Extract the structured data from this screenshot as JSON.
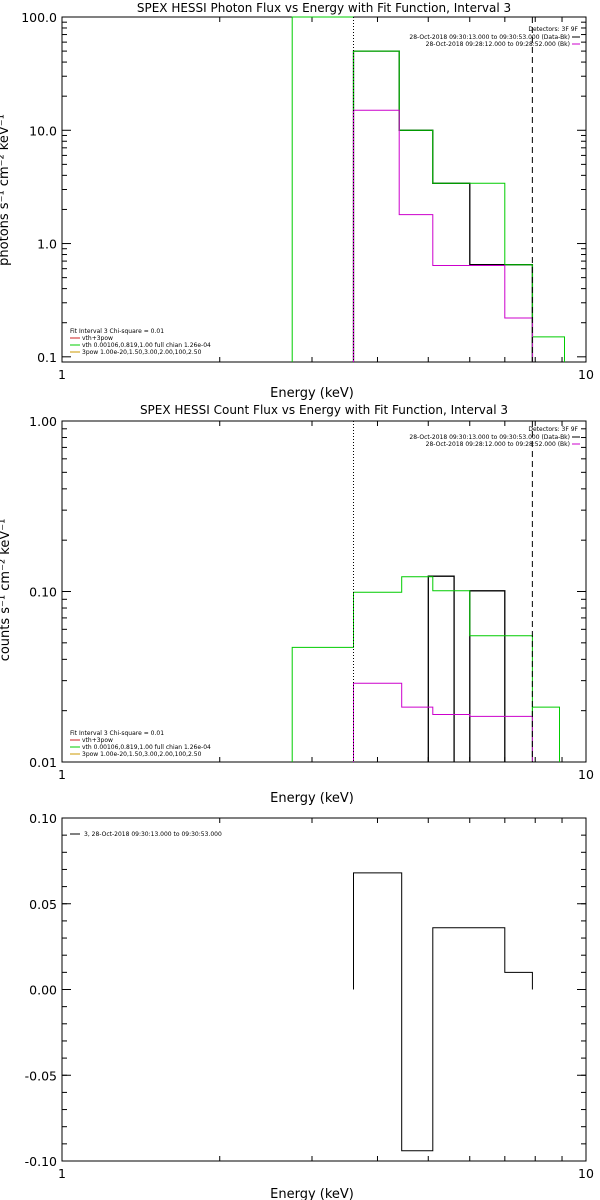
{
  "colors": {
    "total": "#000000",
    "thermal": "#00cc00",
    "pow": "#cc00cc",
    "eq_vth_spow": "#cc2222",
    "eq_vth": "#00cc00",
    "eq_spow": "#cc9900"
  },
  "chart_data": [
    {
      "type": "line",
      "title": "SPEX HESSI Photon Flux vs Energy with Fit Function, Interval 3",
      "xlabel": "Energy (keV)",
      "ylabel": "photons s⁻¹ cm⁻² keV⁻¹",
      "xscale": "log",
      "yscale": "log",
      "xlim": [
        1,
        10
      ],
      "ylim": [
        0.09,
        100
      ],
      "xticks": [
        {
          "v": 1,
          "label": "1"
        },
        {
          "v": 10,
          "label": "10"
        }
      ],
      "yticks": [
        {
          "v": 0.1,
          "label": "0.1"
        },
        {
          "v": 1,
          "label": "1.0"
        },
        {
          "v": 10,
          "label": "10.0"
        },
        {
          "v": 100,
          "label": "100.0"
        }
      ],
      "vlines": [
        {
          "x": 3.6,
          "style": "dotted"
        },
        {
          "x": 7.9,
          "style": "dashed"
        }
      ],
      "legend_top": [
        "Detectors: 3F 9F",
        "28-Oct-2018 09:30:13.000 to 09:30:53.000 (Data-Bk)",
        "28-Oct-2018 09:28:12.000 to 09:28:52.000 (Bk)"
      ],
      "legend_bottom": [
        {
          "text": "Fit Interval 3   Chi-square = 0.01",
          "color": ""
        },
        {
          "text": "vth+3pow",
          "color": "#cc2222"
        },
        {
          "text": "vth 0.00106,0.819,1.00  full chian 1.26e-04",
          "color": "#00cc00"
        },
        {
          "text": "3pow 1.00e-20,1.50,3.00,2.00,100,2.50",
          "color": "#cc9900"
        }
      ],
      "series": [
        {
          "color": "#000000",
          "width": 1.3,
          "segments": [
            {
              "edges": [
                3.6,
                4.4,
                5.1,
                6.0,
                7.9
              ],
              "values": [
                50,
                10,
                3.4,
                0.65
              ]
            }
          ]
        },
        {
          "color": "#00cc00",
          "width": 1,
          "segments": [
            {
              "edges": [
                2.75,
                3.6
              ],
              "values": [
                110,
                110
              ]
            },
            {
              "edges": [
                3.6,
                4.4,
                5.1,
                6.0,
                7.0,
                7.9
              ],
              "values": [
                50,
                10,
                3.4,
                3.4,
                0.65
              ]
            },
            {
              "edges": [
                7.9,
                9.1
              ],
              "values": [
                0.15
              ]
            }
          ]
        },
        {
          "color": "#cc00cc",
          "width": 1,
          "segments": [
            {
              "edges": [
                3.6,
                4.4,
                5.1,
                6.0,
                7.0,
                7.9
              ],
              "values": [
                15,
                1.8,
                0.64,
                0.64,
                0.22
              ]
            }
          ]
        }
      ]
    },
    {
      "type": "line",
      "title": "SPEX HESSI Count Flux vs Energy with Fit Function, Interval 3",
      "xlabel": "Energy (keV)",
      "ylabel": "counts s⁻¹ cm⁻² keV⁻¹",
      "xscale": "log",
      "yscale": "log",
      "xlim": [
        1,
        10
      ],
      "ylim": [
        0.01,
        1
      ],
      "xticks": [
        {
          "v": 1,
          "label": "1"
        },
        {
          "v": 10,
          "label": "10"
        }
      ],
      "yticks": [
        {
          "v": 0.01,
          "label": "0.01"
        },
        {
          "v": 0.1,
          "label": "0.10"
        },
        {
          "v": 1,
          "label": "1.00"
        }
      ],
      "vlines": [
        {
          "x": 3.6,
          "style": "dotted"
        },
        {
          "x": 7.9,
          "style": "dashed"
        }
      ],
      "legend_top": [
        "Detectors: 3F 9F",
        "28-Oct-2018 09:30:13.000 to 09:30:53.000 (Data-Bk)",
        "28-Oct-2018 09:28:12.000 to 09:28:52.000 (Bk)"
      ],
      "legend_bottom": [
        {
          "text": "Fit Interval 3   Chi-square = 0.01",
          "color": ""
        },
        {
          "text": "vth+3pow",
          "color": "#cc2222"
        },
        {
          "text": "vth 0.00106,0.819,1.00  full chian 1.26e-04",
          "color": "#00cc00"
        },
        {
          "text": "3pow 1.00e-20,1.50,3.00,2.00,100,2.50",
          "color": "#cc9900"
        }
      ],
      "series": [
        {
          "color": "#000000",
          "width": 1.3,
          "segments": [
            {
              "edges": [
                5.0,
                5.6
              ],
              "values": [
                0.123
              ]
            },
            {
              "edges": [
                6.0,
                7.0
              ],
              "values": [
                0.101
              ]
            }
          ]
        },
        {
          "color": "#00cc00",
          "width": 1,
          "segments": [
            {
              "edges": [
                2.75,
                3.6,
                4.45,
                5.1,
                6.0,
                7.0,
                7.9
              ],
              "values": [
                0.047,
                0.099,
                0.122,
                0.101,
                0.055,
                0.055
              ]
            },
            {
              "edges": [
                7.9,
                8.9
              ],
              "values": [
                0.021
              ]
            }
          ]
        },
        {
          "color": "#cc00cc",
          "width": 1,
          "segments": [
            {
              "edges": [
                3.6,
                4.45,
                5.1,
                6.0,
                7.0,
                7.9
              ],
              "values": [
                0.029,
                0.021,
                0.019,
                0.0185,
                0.0185
              ]
            }
          ]
        }
      ]
    },
    {
      "type": "line",
      "title": "",
      "xlabel": "Energy (keV)",
      "ylabel": "",
      "xscale": "log",
      "yscale": "linear",
      "xlim": [
        1,
        10
      ],
      "ylim": [
        -0.1,
        0.1
      ],
      "xticks": [
        {
          "v": 1,
          "label": "1"
        },
        {
          "v": 10,
          "label": "10"
        }
      ],
      "yticks": [
        {
          "v": -0.1,
          "label": "-0.10"
        },
        {
          "v": -0.05,
          "label": "-0.05"
        },
        {
          "v": 0,
          "label": "0.00"
        },
        {
          "v": 0.05,
          "label": "0.05"
        },
        {
          "v": 0.1,
          "label": "0.10"
        }
      ],
      "vlines": [],
      "legend_top": [],
      "legend_bottom": [],
      "legend_line": "3, 28-Oct-2018 09:30:13.000 to 09:30:53.000",
      "series": [
        {
          "color": "#000000",
          "width": 1,
          "segments": [
            {
              "edges": [
                3.6,
                4.45,
                5.1,
                6.0,
                7.0,
                7.9
              ],
              "values": [
                0.068,
                -0.094,
                0.036,
                0.036,
                0.01
              ]
            }
          ]
        }
      ]
    }
  ]
}
